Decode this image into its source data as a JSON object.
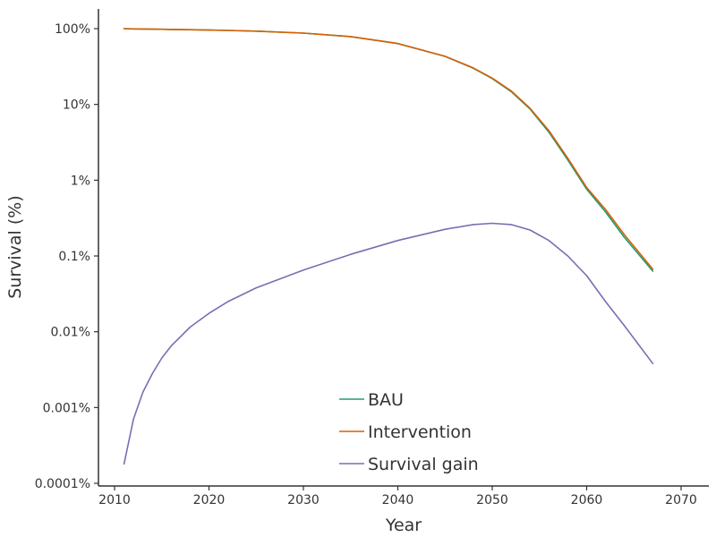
{
  "chart_data": {
    "type": "line",
    "title": "",
    "xlabel": "Year",
    "ylabel": "Survival (%)",
    "xlim": [
      2008,
      2073
    ],
    "ylim": [
      0.0001,
      100
    ],
    "yscale": "log",
    "grid": false,
    "legend_position": "bottom-center",
    "x_ticks": [
      2010,
      2020,
      2030,
      2040,
      2050,
      2060,
      2070
    ],
    "x_tick_labels": [
      "2010",
      "2020",
      "2030",
      "2040",
      "2050",
      "2060",
      "2070"
    ],
    "y_ticks": [
      100,
      10,
      1,
      0.1,
      0.01,
      0.001,
      0.0001
    ],
    "y_tick_labels": [
      "100%",
      "10%",
      "1%",
      "0.1%",
      "0.01%",
      "0.001%",
      "0.0001%"
    ],
    "x": [
      2011,
      2012,
      2013,
      2014,
      2015,
      2016,
      2018,
      2020,
      2022,
      2025,
      2030,
      2035,
      2040,
      2045,
      2048,
      2050,
      2052,
      2054,
      2056,
      2058,
      2060,
      2062,
      2064,
      2067
    ],
    "series": [
      {
        "name": "BAU",
        "color": "#1b9e77",
        "values": [
          100,
          99.3,
          98.8,
          98.4,
          98.0,
          97.6,
          96.8,
          95.8,
          94.6,
          92.6,
          87.4,
          78.5,
          63.5,
          43.0,
          30.0,
          21.9,
          14.8,
          8.7,
          4.3,
          1.85,
          0.76,
          0.38,
          0.175,
          0.063
        ]
      },
      {
        "name": "Intervention",
        "color": "#d95f02",
        "values": [
          100,
          99.3,
          98.8,
          98.4,
          98.0,
          97.6,
          96.8,
          95.8,
          94.6,
          92.6,
          87.4,
          78.6,
          63.7,
          43.2,
          30.3,
          22.2,
          15.1,
          8.9,
          4.5,
          1.95,
          0.8,
          0.41,
          0.19,
          0.067
        ]
      },
      {
        "name": "Survival gain",
        "color": "#7570b3",
        "values": [
          0.00018,
          0.0007,
          0.0016,
          0.0028,
          0.0045,
          0.0065,
          0.0115,
          0.0175,
          0.025,
          0.038,
          0.065,
          0.105,
          0.16,
          0.225,
          0.26,
          0.27,
          0.26,
          0.22,
          0.16,
          0.1,
          0.055,
          0.025,
          0.012,
          0.0038
        ]
      }
    ]
  },
  "legend": {
    "items": [
      {
        "label": "BAU",
        "color": "#1b9e77"
      },
      {
        "label": "Intervention",
        "color": "#d95f02"
      },
      {
        "label": "Survival gain",
        "color": "#7570b3"
      }
    ]
  }
}
